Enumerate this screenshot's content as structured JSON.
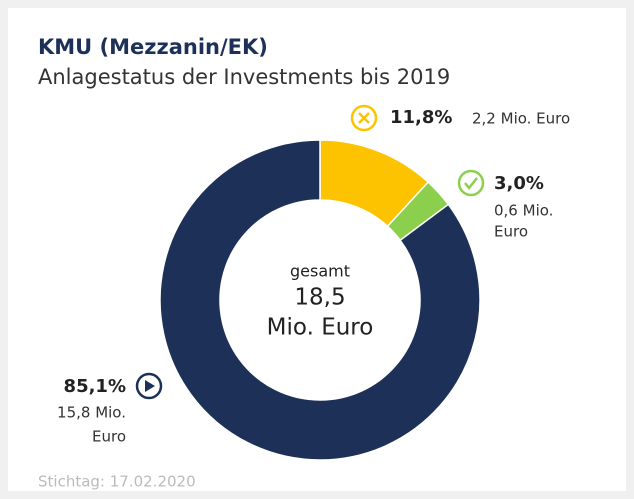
{
  "chart_data": {
    "type": "donut",
    "title": "KMU (Mezzanin/EK)",
    "subtitle": "Anlagestatus der Investments bis 2019",
    "categories": [
      null,
      null,
      null
    ],
    "values": [
      11.8,
      3.0,
      85.1
    ],
    "value_labels": [
      "11,8%",
      "3,0%",
      "85,1%"
    ],
    "sublabels": [
      [
        "2,2 Mio. Euro"
      ],
      [
        "0,6 Mio.",
        "Euro"
      ],
      [
        "15,8 Mio.",
        "Euro"
      ]
    ],
    "colors": [
      "#fdc300",
      "#8ccf4d",
      "#1d3057"
    ],
    "center_text": [
      "gesamt",
      "18,5",
      "Mio. Euro"
    ],
    "footnote": "Stichtag: 17.02.2020"
  }
}
